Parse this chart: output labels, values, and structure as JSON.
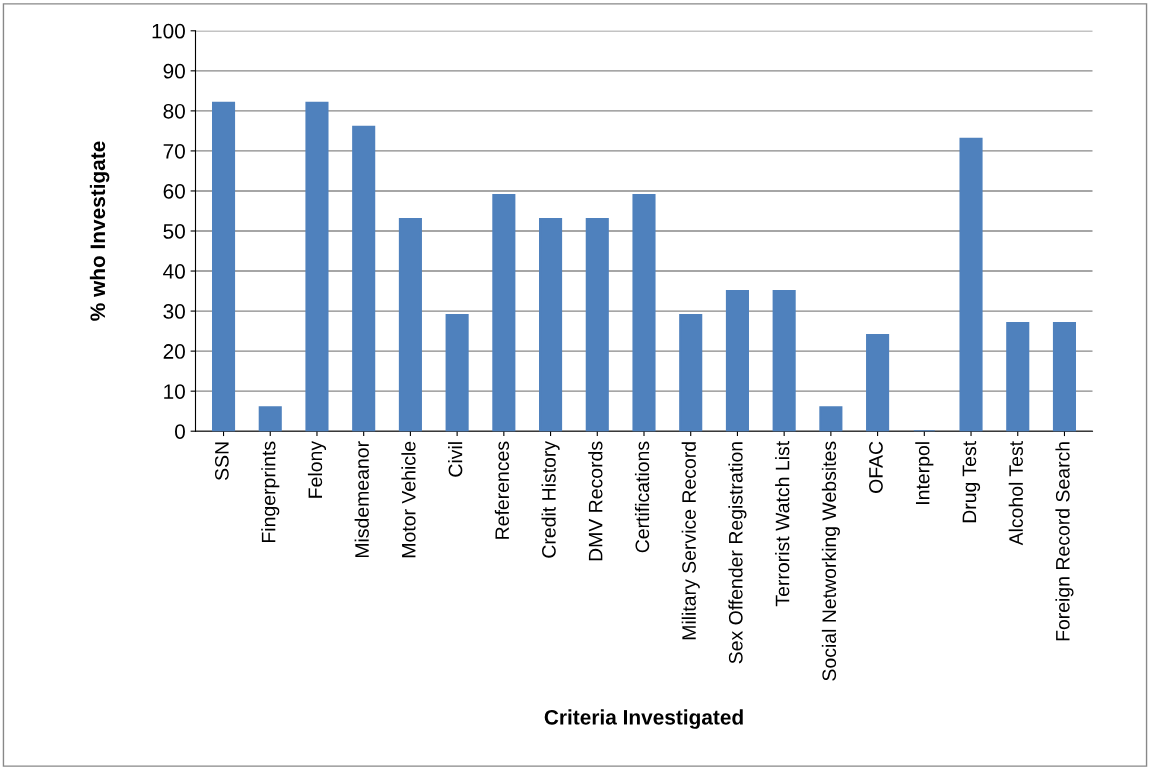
{
  "chart_data": {
    "type": "bar",
    "xlabel": "Criteria Investigated",
    "ylabel": "% who Investigate",
    "categories": [
      "SSN",
      "Fingerprints",
      "Felony",
      "Misdemeanor",
      "Motor Vehicle",
      "Civil",
      "References",
      "Credit History",
      "DMV Records",
      "Certifications",
      "Military Service Record",
      "Sex Offender Registration",
      "Terrorist Watch List",
      "Social Networking Websites",
      "OFAC",
      "Interpol",
      "Drug Test",
      "Alcohol Test",
      "Foreign Record Search"
    ],
    "values": [
      82,
      6,
      82,
      76,
      53,
      29,
      59,
      53,
      53,
      59,
      29,
      35,
      35,
      6,
      24,
      0,
      73,
      27,
      27
    ],
    "color": "#4f81bd",
    "ylim": [
      0,
      100
    ],
    "yticks": [
      0,
      10,
      20,
      30,
      40,
      50,
      60,
      70,
      80,
      90,
      100
    ],
    "grid": "y",
    "legend": false
  }
}
